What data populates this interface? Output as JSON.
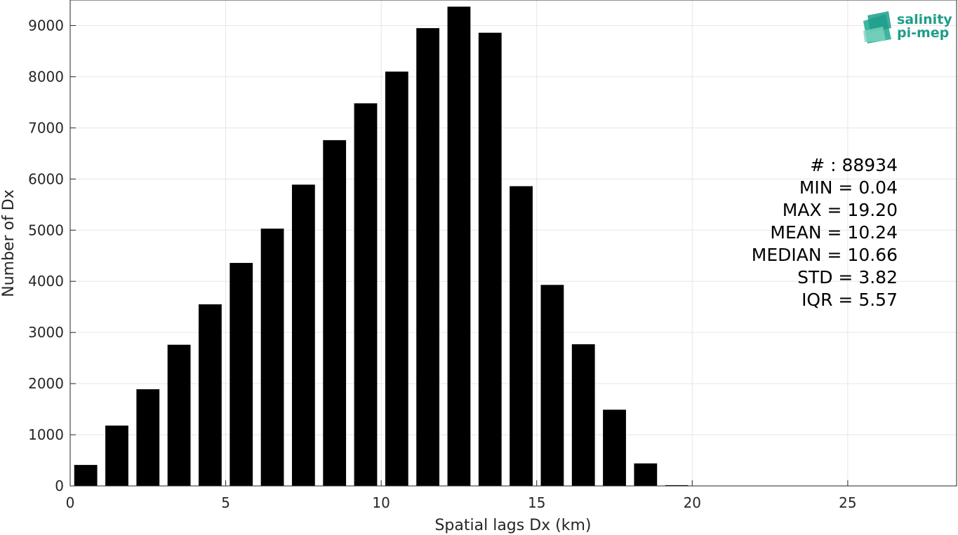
{
  "chart_data": {
    "type": "bar",
    "xlabel": "Spatial lags Dx (km)",
    "ylabel": "Number of Dx",
    "xlim": [
      0,
      28.5
    ],
    "ylim": [
      0,
      9500
    ],
    "xticks": [
      0,
      5,
      10,
      15,
      20,
      25
    ],
    "yticks": [
      0,
      1000,
      2000,
      3000,
      4000,
      5000,
      6000,
      7000,
      8000,
      9000
    ],
    "grid": true,
    "bar_color": "#000000",
    "bin_width": 1,
    "x": [
      0.5,
      1.5,
      2.5,
      3.5,
      4.5,
      5.5,
      6.5,
      7.5,
      8.5,
      9.5,
      10.5,
      11.5,
      12.5,
      13.5,
      14.5,
      15.5,
      16.5,
      17.5,
      18.5,
      19.5,
      20.5,
      21.5,
      22.5,
      23.5,
      24.5,
      25.5,
      26.5,
      27.5
    ],
    "values": [
      410,
      1180,
      1890,
      2760,
      3550,
      4360,
      5030,
      5890,
      6760,
      7480,
      8100,
      8950,
      9370,
      8860,
      5860,
      3930,
      2770,
      1490,
      440,
      15,
      0,
      0,
      0,
      0,
      0,
      0,
      0,
      0
    ]
  },
  "stats": [
    "# : 88934",
    "MIN = 0.04",
    "MAX =  19.20",
    "MEAN = 10.24",
    "MEDIAN = 10.66",
    "STD = 3.82",
    "IQR = 5.57"
  ],
  "logo": {
    "line1": "salinity",
    "line2": "pi-mep",
    "color": "#1f9e89"
  }
}
